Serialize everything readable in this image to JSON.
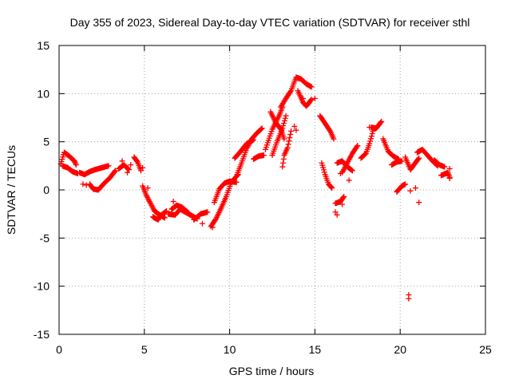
{
  "chart_data": {
    "type": "scatter",
    "title": "Day 355 of 2023, Sidereal Day-to-day VTEC variation (SDTVAR) for receiver sthl",
    "xlabel": "GPS time / hours",
    "ylabel": "SDTVAR / TECUs",
    "xlim": [
      0,
      25
    ],
    "ylim": [
      -15,
      15
    ],
    "xticks": [
      0,
      5,
      10,
      15,
      20,
      25
    ],
    "yticks": [
      -15,
      -10,
      -5,
      0,
      5,
      10,
      15
    ],
    "grid": true,
    "marker": "+",
    "series": [
      {
        "name": "SDTVAR",
        "color": "#ff0000",
        "segments": [
          [
            [
              0.1,
              2.7
            ],
            [
              0.3,
              3.9
            ],
            [
              0.6,
              3.5
            ],
            [
              0.9,
              3.0
            ],
            [
              1.0,
              2.6
            ]
          ],
          [
            [
              0.2,
              2.5
            ],
            [
              0.5,
              2.3
            ],
            [
              0.8,
              1.9
            ],
            [
              1.1,
              1.7
            ]
          ],
          [
            [
              1.2,
              1.8
            ],
            [
              1.5,
              1.6
            ],
            [
              1.8,
              1.9
            ],
            [
              2.1,
              2.1
            ],
            [
              2.5,
              2.3
            ],
            [
              2.9,
              2.5
            ]
          ],
          [
            [
              1.8,
              0.6
            ],
            [
              2.0,
              0.1
            ],
            [
              2.3,
              0.0
            ],
            [
              2.6,
              0.6
            ],
            [
              3.0,
              1.3
            ],
            [
              3.3,
              2.0
            ]
          ],
          [
            [
              3.5,
              2.2
            ],
            [
              3.8,
              2.6
            ],
            [
              4.1,
              2.1
            ]
          ],
          [
            [
              4.4,
              3.4
            ],
            [
              4.6,
              2.9
            ],
            [
              4.8,
              2.0
            ]
          ],
          [
            [
              4.9,
              0.4
            ],
            [
              5.1,
              -0.5
            ],
            [
              5.3,
              -1.2
            ],
            [
              5.6,
              -2.2
            ],
            [
              5.9,
              -2.6
            ],
            [
              6.2,
              -2.9
            ]
          ],
          [
            [
              5.5,
              -2.8
            ],
            [
              5.8,
              -3.1
            ],
            [
              6.0,
              -2.6
            ],
            [
              6.3,
              -2.2
            ]
          ],
          [
            [
              6.4,
              -2.5
            ],
            [
              6.8,
              -2.6
            ],
            [
              7.1,
              -2.0
            ],
            [
              7.4,
              -2.3
            ],
            [
              7.8,
              -2.7
            ],
            [
              8.1,
              -3.0
            ]
          ],
          [
            [
              6.6,
              -2.0
            ],
            [
              6.9,
              -1.6
            ],
            [
              7.2,
              -1.8
            ],
            [
              7.6,
              -2.4
            ]
          ],
          [
            [
              7.9,
              -3.1
            ],
            [
              8.3,
              -2.5
            ],
            [
              8.7,
              -2.3
            ]
          ],
          [
            [
              8.9,
              -3.8
            ],
            [
              9.2,
              -3.0
            ],
            [
              9.5,
              -1.9
            ],
            [
              9.8,
              -0.7
            ],
            [
              10.1,
              0.8
            ],
            [
              10.5,
              1.6
            ]
          ],
          [
            [
              9.1,
              -1.3
            ],
            [
              9.4,
              0.1
            ],
            [
              9.7,
              0.7
            ],
            [
              10.0,
              0.9
            ],
            [
              10.4,
              0.8
            ]
          ],
          [
            [
              10.4,
              1.4
            ],
            [
              10.7,
              2.8
            ],
            [
              11.0,
              4.3
            ],
            [
              11.3,
              5.3
            ],
            [
              11.6,
              5.9
            ],
            [
              11.9,
              6.4
            ]
          ],
          [
            [
              10.3,
              3.3
            ],
            [
              10.6,
              3.9
            ],
            [
              11.0,
              4.8
            ],
            [
              11.4,
              5.2
            ]
          ],
          [
            [
              11.4,
              3.2
            ],
            [
              11.7,
              3.5
            ],
            [
              12.0,
              3.6
            ]
          ],
          [
            [
              12.1,
              4.2
            ],
            [
              12.5,
              6.3
            ],
            [
              12.9,
              7.7
            ],
            [
              13.1,
              8.6
            ]
          ],
          [
            [
              12.4,
              8.1
            ],
            [
              12.7,
              7.0
            ],
            [
              13.0,
              6.3
            ],
            [
              13.2,
              5.3
            ]
          ],
          [
            [
              12.5,
              3.6
            ],
            [
              12.8,
              5.1
            ],
            [
              13.1,
              6.4
            ],
            [
              13.3,
              7.7
            ]
          ],
          [
            [
              13.1,
              2.4
            ],
            [
              13.2,
              3.6
            ],
            [
              13.4,
              4.4
            ],
            [
              13.6,
              6.1
            ]
          ],
          [
            [
              13.0,
              8.6
            ],
            [
              13.3,
              9.5
            ],
            [
              13.6,
              10.3
            ],
            [
              13.9,
              11.7
            ],
            [
              14.2,
              11.5
            ],
            [
              14.5,
              11.0
            ],
            [
              14.8,
              10.7
            ]
          ],
          [
            [
              14.0,
              10.3
            ],
            [
              14.3,
              9.1
            ],
            [
              14.5,
              8.7
            ],
            [
              14.8,
              9.4
            ]
          ],
          [
            [
              15.3,
              7.7
            ],
            [
              15.6,
              6.9
            ],
            [
              15.9,
              6.1
            ],
            [
              16.1,
              5.3
            ]
          ],
          [
            [
              15.4,
              2.8
            ],
            [
              15.6,
              1.6
            ],
            [
              15.8,
              0.6
            ],
            [
              16.0,
              0.2
            ]
          ],
          [
            [
              16.2,
              -1.4
            ],
            [
              16.5,
              -1.2
            ],
            [
              16.7,
              -0.7
            ]
          ],
          [
            [
              16.3,
              2.8
            ],
            [
              16.6,
              3.0
            ],
            [
              16.9,
              2.4
            ],
            [
              17.2,
              2.0
            ]
          ],
          [
            [
              16.6,
              1.8
            ],
            [
              16.9,
              2.8
            ],
            [
              17.2,
              3.8
            ],
            [
              17.5,
              4.6
            ]
          ],
          [
            [
              17.7,
              3.3
            ],
            [
              18.0,
              3.8
            ],
            [
              18.2,
              4.8
            ],
            [
              18.4,
              6.1
            ]
          ],
          [
            [
              18.3,
              6.5
            ],
            [
              18.6,
              6.4
            ],
            [
              18.9,
              7.1
            ]
          ],
          [
            [
              19.0,
              5.3
            ],
            [
              19.3,
              4.0
            ],
            [
              19.6,
              3.5
            ],
            [
              19.9,
              3.2
            ]
          ],
          [
            [
              19.5,
              2.6
            ],
            [
              19.8,
              2.9
            ],
            [
              20.1,
              3.0
            ]
          ],
          [
            [
              19.8,
              -0.2
            ],
            [
              20.1,
              0.4
            ],
            [
              20.3,
              0.6
            ]
          ],
          [
            [
              20.3,
              3.4
            ],
            [
              20.6,
              2.1
            ],
            [
              20.8,
              2.6
            ],
            [
              21.1,
              3.3
            ]
          ],
          [
            [
              21.0,
              3.9
            ],
            [
              21.3,
              4.2
            ],
            [
              21.6,
              3.6
            ],
            [
              21.9,
              3.0
            ],
            [
              22.2,
              2.5
            ]
          ],
          [
            [
              22.0,
              3.1
            ],
            [
              22.3,
              2.6
            ],
            [
              22.6,
              2.4
            ]
          ],
          [
            [
              22.4,
              1.5
            ],
            [
              22.8,
              1.8
            ],
            [
              22.9,
              1.3
            ]
          ]
        ],
        "points": [
          [
            1.4,
            0.6
          ],
          [
            1.6,
            0.5
          ],
          [
            3.7,
            3.0
          ],
          [
            4.0,
            1.8
          ],
          [
            4.2,
            2.6
          ],
          [
            4.9,
            2.3
          ],
          [
            5.2,
            0.2
          ],
          [
            6.7,
            -1.2
          ],
          [
            8.4,
            -3.5
          ],
          [
            9.0,
            -3.9
          ],
          [
            13.8,
            6.6
          ],
          [
            13.9,
            6.2
          ],
          [
            14.3,
            9.5
          ],
          [
            15.0,
            9.5
          ],
          [
            14.6,
            8.9
          ],
          [
            16.2,
            -2.3
          ],
          [
            16.3,
            -2.6
          ],
          [
            16.6,
            -1.5
          ],
          [
            16.5,
            1.7
          ],
          [
            17.0,
            1.0
          ],
          [
            18.2,
            6.5
          ],
          [
            20.5,
            -10.9
          ],
          [
            20.5,
            -11.3
          ],
          [
            20.9,
            0.2
          ],
          [
            20.6,
            -0.1
          ],
          [
            21.1,
            -1.3
          ],
          [
            22.9,
            2.2
          ],
          [
            22.9,
            1.2
          ]
        ]
      }
    ]
  }
}
